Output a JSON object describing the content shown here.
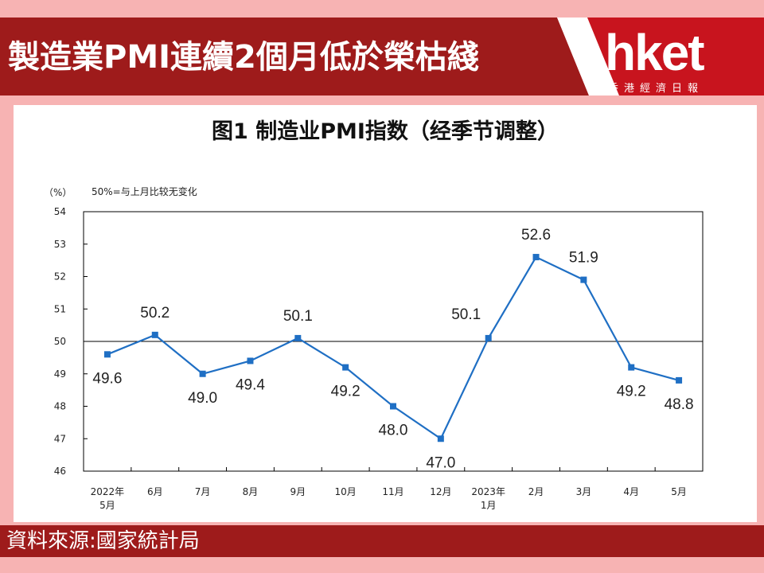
{
  "header": {
    "headline": "製造業PMI連續2個月低於榮枯綫",
    "logo": "hket",
    "logo_sub": "香港經濟日報",
    "colors": {
      "red_bar": "#9e1b1b",
      "logo_bg": "#c8141e",
      "page_bg": "#f7b3b3"
    }
  },
  "chart_data": {
    "type": "line",
    "title": "图1  制造业PMI指数（经季节调整）",
    "ylabel": "（%）",
    "annotation": "50%=与上月比较无变化",
    "reference_line": 50,
    "ylim": [
      46,
      54
    ],
    "yticks": [
      "46",
      "47",
      "48",
      "49",
      "50",
      "51",
      "52",
      "53",
      "54"
    ],
    "categories": [
      [
        "2022年",
        "5月"
      ],
      [
        "6月"
      ],
      [
        "7月"
      ],
      [
        "8月"
      ],
      [
        "9月"
      ],
      [
        "10月"
      ],
      [
        "11月"
      ],
      [
        "12月"
      ],
      [
        "2023年",
        "1月"
      ],
      [
        "2月"
      ],
      [
        "3月"
      ],
      [
        "4月"
      ],
      [
        "5月"
      ]
    ],
    "values": [
      49.6,
      50.2,
      49.0,
      49.4,
      50.1,
      49.2,
      48.0,
      47.0,
      50.1,
      52.6,
      51.9,
      49.2,
      48.8
    ],
    "data_labels": [
      "49.6",
      "50.2",
      "49.0",
      "49.4",
      "50.1",
      "49.2",
      "48.0",
      "47.0",
      "50.1",
      "52.6",
      "51.9",
      "49.2",
      "48.8"
    ],
    "line_color": "#1f6fc4"
  },
  "footer": {
    "source": "資料來源:國家統計局"
  }
}
